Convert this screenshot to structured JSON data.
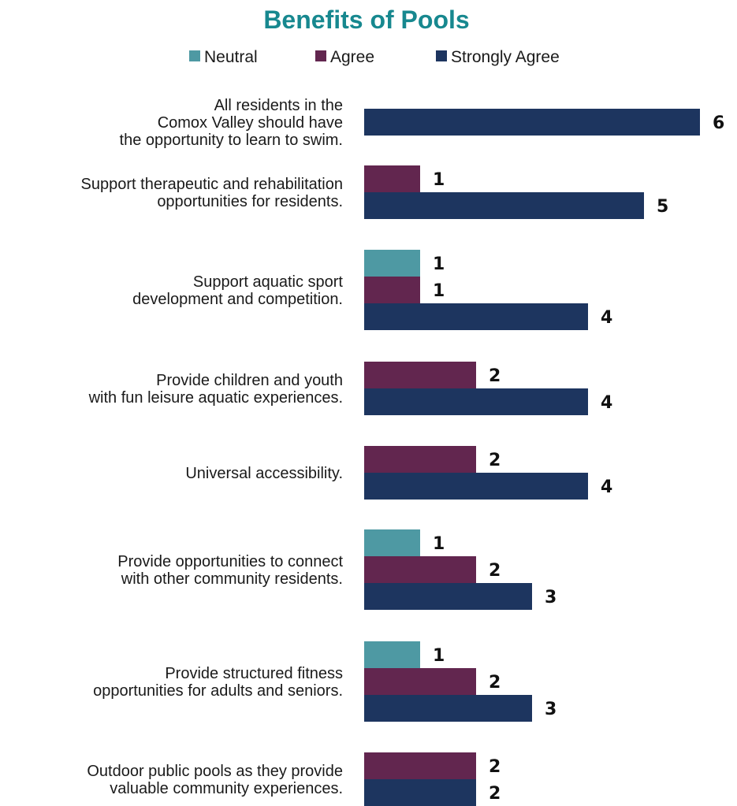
{
  "chart_data": {
    "type": "bar",
    "orientation": "horizontal",
    "title": "Benefits of Pools",
    "legend_position": "top",
    "grid": false,
    "xlim": [
      0,
      6
    ],
    "series": [
      {
        "name": "Neutral",
        "color": "#4e99a3"
      },
      {
        "name": "Agree",
        "color": "#62264f"
      },
      {
        "name": "Strongly Agree",
        "color": "#1d355f"
      }
    ],
    "categories": [
      {
        "label_lines": [
          "All residents in the",
          "Comox Valley should have",
          "the opportunity to learn to swim."
        ],
        "values": {
          "Neutral": null,
          "Agree": null,
          "Strongly Agree": 6
        }
      },
      {
        "label_lines": [
          "Support therapeutic and rehabilitation",
          "opportunities for residents."
        ],
        "values": {
          "Neutral": null,
          "Agree": 1,
          "Strongly Agree": 5
        }
      },
      {
        "label_lines": [
          "Support aquatic sport",
          "development and competition."
        ],
        "values": {
          "Neutral": 1,
          "Agree": 1,
          "Strongly Agree": 4
        }
      },
      {
        "label_lines": [
          "Provide children and youth",
          "with fun leisure aquatic experiences."
        ],
        "values": {
          "Neutral": null,
          "Agree": 2,
          "Strongly Agree": 4
        }
      },
      {
        "label_lines": [
          "Universal accessibility."
        ],
        "values": {
          "Neutral": null,
          "Agree": 2,
          "Strongly Agree": 4
        }
      },
      {
        "label_lines": [
          "Provide opportunities to connect",
          "with other community residents."
        ],
        "values": {
          "Neutral": 1,
          "Agree": 2,
          "Strongly Agree": 3
        }
      },
      {
        "label_lines": [
          "Provide structured fitness",
          "opportunities  for adults and seniors."
        ],
        "values": {
          "Neutral": 1,
          "Agree": 2,
          "Strongly Agree": 3
        }
      },
      {
        "label_lines": [
          "Outdoor public pools as they provide",
          "valuable community experiences."
        ],
        "values": {
          "Neutral": null,
          "Agree": 2,
          "Strongly Agree": 2
        }
      }
    ]
  }
}
